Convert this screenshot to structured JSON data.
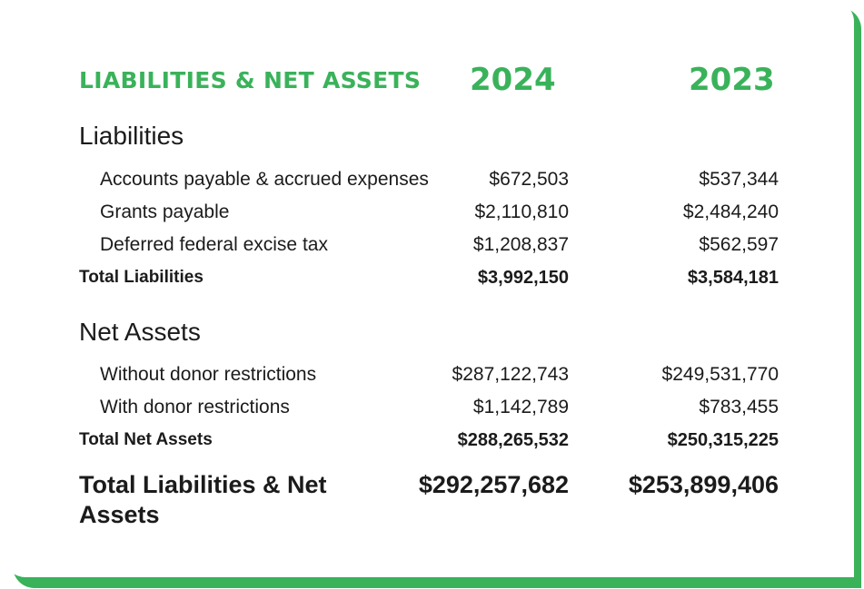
{
  "header": {
    "title": "LIABILITIES & NET ASSETS",
    "year_current": "2024",
    "year_prior": "2023"
  },
  "colors": {
    "accent": "#3ab25a",
    "text": "#1b1b1b"
  },
  "liabilities": {
    "heading": "Liabilities",
    "rows": [
      {
        "label": "Accounts payable & accrued expenses",
        "y2024": "$672,503",
        "y2023": "$537,344"
      },
      {
        "label": "Grants payable",
        "y2024": "$2,110,810",
        "y2023": "$2,484,240"
      },
      {
        "label": "Deferred federal excise tax",
        "y2024": "$1,208,837",
        "y2023": "$562,597"
      }
    ],
    "total": {
      "label": "Total Liabilities",
      "y2024": "$3,992,150",
      "y2023": "$3,584,181"
    }
  },
  "net_assets": {
    "heading": "Net Assets",
    "rows": [
      {
        "label": "Without donor restrictions",
        "y2024": "$287,122,743",
        "y2023": "$249,531,770"
      },
      {
        "label": "With donor restrictions",
        "y2024": "$1,142,789",
        "y2023": "$783,455"
      }
    ],
    "total": {
      "label": "Total Net Assets",
      "y2024": "$288,265,532",
      "y2023": "$250,315,225"
    }
  },
  "grand_total": {
    "label": "Total Liabilities & Net Assets",
    "y2024": "$292,257,682",
    "y2023": "$253,899,406"
  }
}
